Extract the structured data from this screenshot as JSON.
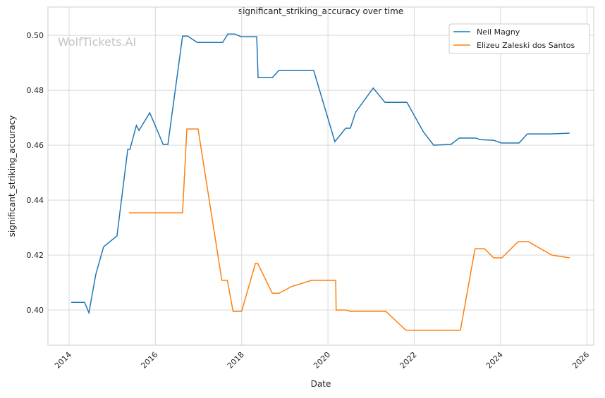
{
  "chart_data": {
    "type": "line",
    "title": "significant_striking_accuracy over time",
    "xlabel": "Date",
    "ylabel": "significant_striking_accuracy",
    "watermark": "WolfTickets.AI",
    "xlim": [
      2013.51,
      2026.16
    ],
    "ylim": [
      0.3872,
      0.5103
    ],
    "xticks": [
      2014,
      2016,
      2018,
      2020,
      2022,
      2024,
      2026
    ],
    "xtick_labels": [
      "2014",
      "2016",
      "2018",
      "2020",
      "2022",
      "2024",
      "2026"
    ],
    "yticks": [
      0.4,
      0.42,
      0.44,
      0.46,
      0.48,
      0.5
    ],
    "ytick_labels": [
      "0.40",
      "0.42",
      "0.44",
      "0.46",
      "0.48",
      "0.50"
    ],
    "grid": true,
    "legend_position": "top-right",
    "series": [
      {
        "name": "Neil Magny",
        "color": "#1f77b4",
        "x": [
          2014.05,
          2014.36,
          2014.46,
          2014.62,
          2014.8,
          2015.11,
          2015.36,
          2015.41,
          2015.56,
          2015.62,
          2015.87,
          2016.18,
          2016.29,
          2016.63,
          2016.75,
          2016.97,
          2017.56,
          2017.68,
          2017.84,
          2017.99,
          2018.35,
          2018.38,
          2018.71,
          2018.86,
          2019.67,
          2020.16,
          2020.41,
          2020.52,
          2020.64,
          2021.05,
          2021.32,
          2021.83,
          2022.21,
          2022.45,
          2022.85,
          2023.04,
          2023.43,
          2023.53,
          2023.84,
          2024.02,
          2024.43,
          2024.62,
          2025.19,
          2025.6
        ],
        "y": [
          0.4028,
          0.4028,
          0.399,
          0.413,
          0.423,
          0.427,
          0.4585,
          0.4585,
          0.4672,
          0.4654,
          0.4718,
          0.4603,
          0.4603,
          0.4997,
          0.4997,
          0.4974,
          0.4974,
          0.5005,
          0.5005,
          0.4995,
          0.4995,
          0.4846,
          0.4846,
          0.4872,
          0.4872,
          0.4613,
          0.4662,
          0.4662,
          0.472,
          0.4808,
          0.4756,
          0.4756,
          0.4649,
          0.46,
          0.4603,
          0.4626,
          0.4626,
          0.462,
          0.4618,
          0.4608,
          0.4608,
          0.4641,
          0.4641,
          0.4644
        ]
      },
      {
        "name": "Elizeu Zaleski dos Santos",
        "color": "#ff7f0e",
        "x": [
          2015.39,
          2016.63,
          2016.73,
          2016.99,
          2017.54,
          2017.67,
          2017.8,
          2018.0,
          2018.32,
          2018.37,
          2018.71,
          2018.87,
          2019.15,
          2019.62,
          2020.18,
          2020.19,
          2020.42,
          2020.52,
          2021.34,
          2021.81,
          2023.07,
          2023.41,
          2023.63,
          2023.84,
          2024.03,
          2024.41,
          2024.64,
          2025.19,
          2025.6
        ],
        "y": [
          0.4354,
          0.4354,
          0.4659,
          0.4659,
          0.4108,
          0.4108,
          0.3995,
          0.3995,
          0.417,
          0.417,
          0.4061,
          0.4061,
          0.4085,
          0.4108,
          0.4108,
          0.4,
          0.4,
          0.3995,
          0.3995,
          0.3926,
          0.3926,
          0.4223,
          0.4223,
          0.419,
          0.419,
          0.4249,
          0.4249,
          0.42,
          0.419
        ]
      }
    ]
  }
}
